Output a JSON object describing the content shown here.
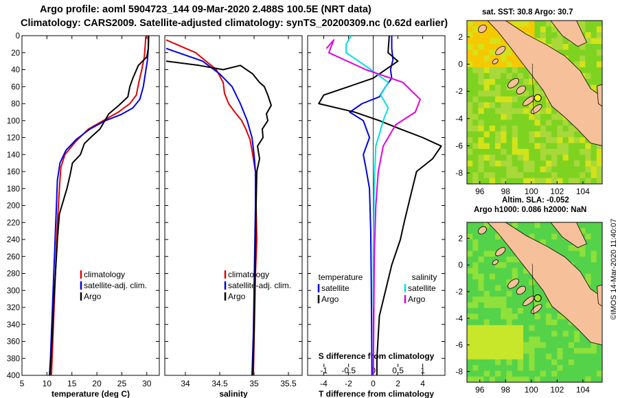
{
  "header": {
    "line1": "Argo profile: aoml 5904723_144 09-Mar-2020 2.488S 100.5E (NRT data)",
    "line2": "Climatology: CARS2009. Satellite-adjusted climatology: synTS_20200309.nc (0.62d earlier)"
  },
  "watermark": "©IMOS 14-Mar-2020 11:40:07",
  "colors": {
    "climatology": "#e00000",
    "satellite": "#0000e0",
    "argo": "#000000",
    "sat_salinity": "#00e0e0",
    "argo_salinity": "#e000e0",
    "land": "#f5c09a",
    "coast": "#000000"
  },
  "chart_data": [
    {
      "type": "line",
      "panel": "temperature",
      "xlabel": "temperature (deg C)",
      "xlim": [
        5,
        32.5
      ],
      "ylim": [
        0,
        400
      ],
      "y_inverted": true,
      "xticks": [
        5,
        10,
        15,
        20,
        25,
        30
      ],
      "yticks": [
        0,
        20,
        40,
        60,
        80,
        100,
        120,
        140,
        160,
        180,
        200,
        220,
        240,
        260,
        280,
        300,
        320,
        340,
        360,
        380,
        400
      ],
      "legend": [
        "climatology",
        "satellite-adj. clim.",
        "Argo"
      ],
      "series": [
        {
          "name": "climatology",
          "color": "#e00000",
          "points": [
            [
              29.8,
              0
            ],
            [
              29.7,
              10
            ],
            [
              29.5,
              25
            ],
            [
              29,
              40
            ],
            [
              28.4,
              55
            ],
            [
              27.9,
              70
            ],
            [
              26.6,
              80
            ],
            [
              24.3,
              90
            ],
            [
              21.3,
              100
            ],
            [
              18.3,
              110
            ],
            [
              15.7,
              125
            ],
            [
              13.6,
              140
            ],
            [
              12.8,
              155
            ],
            [
              12.6,
              170
            ],
            [
              12.4,
              190
            ],
            [
              12.1,
              220
            ],
            [
              11.9,
              250
            ],
            [
              11.7,
              280
            ],
            [
              11.5,
              310
            ],
            [
              11.3,
              340
            ],
            [
              11.1,
              370
            ],
            [
              10.9,
              400
            ]
          ]
        },
        {
          "name": "satellite-adj. clim.",
          "color": "#0000e0",
          "points": [
            [
              30.4,
              0
            ],
            [
              30.3,
              15
            ],
            [
              30.1,
              30
            ],
            [
              29.7,
              45
            ],
            [
              29.3,
              60
            ],
            [
              28.6,
              75
            ],
            [
              27.2,
              85
            ],
            [
              24.8,
              93
            ],
            [
              21.7,
              100
            ],
            [
              18.6,
              110
            ],
            [
              15.9,
              122
            ],
            [
              13.8,
              135
            ],
            [
              12.6,
              150
            ],
            [
              12.1,
              170
            ],
            [
              11.9,
              200
            ],
            [
              11.7,
              230
            ],
            [
              11.5,
              260
            ],
            [
              11.3,
              290
            ],
            [
              11.1,
              320
            ],
            [
              10.9,
              350
            ],
            [
              10.7,
              380
            ],
            [
              10.5,
              400
            ]
          ]
        },
        {
          "name": "Argo",
          "color": "#000000",
          "points": [
            [
              30.3,
              0
            ],
            [
              30.3,
              15
            ],
            [
              30,
              25
            ],
            [
              28.3,
              35
            ],
            [
              27.2,
              50
            ],
            [
              26.6,
              60
            ],
            [
              26.2,
              72
            ],
            [
              24.4,
              82
            ],
            [
              22.4,
              92
            ],
            [
              21.6,
              100
            ],
            [
              20.6,
              110
            ],
            [
              19.1,
              118
            ],
            [
              17.5,
              127
            ],
            [
              16.7,
              140
            ],
            [
              15.1,
              150
            ],
            [
              14.6,
              165
            ],
            [
              14,
              180
            ],
            [
              13.5,
              190
            ],
            [
              12.5,
              210
            ],
            [
              12.1,
              240
            ],
            [
              11.9,
              260
            ],
            [
              11.6,
              290
            ],
            [
              11.3,
              320
            ],
            [
              11.1,
              350
            ],
            [
              10.8,
              380
            ],
            [
              10.6,
              400
            ]
          ]
        }
      ]
    },
    {
      "type": "line",
      "panel": "salinity",
      "xlabel": "salinity",
      "xlim": [
        33.7,
        35.7
      ],
      "ylim": [
        0,
        400
      ],
      "y_inverted": true,
      "xticks": [
        34,
        34.5,
        35,
        35.5
      ],
      "legend": [
        "climatology",
        "satellite-adj. clim.",
        "Argo"
      ],
      "series": [
        {
          "name": "climatology",
          "color": "#e00000",
          "points": [
            [
              33.72,
              5
            ],
            [
              34.15,
              20
            ],
            [
              34.45,
              40
            ],
            [
              34.55,
              55
            ],
            [
              34.57,
              68
            ],
            [
              34.63,
              80
            ],
            [
              34.72,
              90
            ],
            [
              34.82,
              100
            ],
            [
              34.88,
              110
            ],
            [
              34.94,
              122
            ],
            [
              34.97,
              135
            ],
            [
              35,
              150
            ],
            [
              35.03,
              165
            ],
            [
              35.03,
              200
            ],
            [
              35.04,
              240
            ],
            [
              35.02,
              280
            ],
            [
              35.01,
              320
            ],
            [
              35,
              360
            ],
            [
              34.99,
              400
            ]
          ]
        },
        {
          "name": "satellite-adj. clim.",
          "color": "#0000e0",
          "points": [
            [
              33.72,
              15
            ],
            [
              34.25,
              30
            ],
            [
              34.5,
              45
            ],
            [
              34.68,
              60
            ],
            [
              34.8,
              80
            ],
            [
              34.9,
              100
            ],
            [
              34.97,
              120
            ],
            [
              35,
              140
            ],
            [
              35.02,
              160
            ],
            [
              35.02,
              200
            ],
            [
              35.01,
              250
            ],
            [
              35,
              300
            ],
            [
              34.99,
              350
            ],
            [
              34.97,
              400
            ]
          ]
        },
        {
          "name": "Argo",
          "color": "#000000",
          "points": [
            [
              33.72,
              30
            ],
            [
              34.2,
              35
            ],
            [
              34.55,
              40
            ],
            [
              34.8,
              35
            ],
            [
              34.98,
              45
            ],
            [
              35.08,
              55
            ],
            [
              35.15,
              60
            ],
            [
              35.2,
              70
            ],
            [
              35.25,
              82
            ],
            [
              35.18,
              92
            ],
            [
              35.2,
              100
            ],
            [
              35.12,
              110
            ],
            [
              35.13,
              120
            ],
            [
              35.05,
              130
            ],
            [
              35.08,
              145
            ],
            [
              35.04,
              160
            ],
            [
              35.03,
              200
            ],
            [
              35.02,
              250
            ],
            [
              35.01,
              300
            ],
            [
              35,
              350
            ],
            [
              34.98,
              400
            ]
          ]
        }
      ]
    },
    {
      "type": "line",
      "panel": "difference",
      "xlabel": "T difference from climatology",
      "x2label": "S difference from climatology",
      "xlim": [
        -5.3,
        5.8
      ],
      "ylim": [
        0,
        400
      ],
      "y_inverted": true,
      "xticks": [
        -4,
        -2,
        0,
        2,
        4
      ],
      "x2lim": [
        -1.33,
        1.45
      ],
      "x2ticks": [
        -1,
        -0.5,
        0,
        0.5,
        1
      ],
      "legend_groups": [
        [
          "temperature",
          "satellite",
          "Argo"
        ],
        [
          "salinity",
          "satellite",
          "Argo"
        ]
      ],
      "series": [
        {
          "name": "temperature satellite",
          "color": "#0000e0",
          "axis": "T",
          "points": [
            [
              1.5,
              0
            ],
            [
              1.5,
              15
            ],
            [
              1.6,
              28
            ],
            [
              1.4,
              40
            ],
            [
              1.5,
              50
            ],
            [
              1,
              60
            ],
            [
              0.5,
              72
            ],
            [
              -0.9,
              80
            ],
            [
              -1.9,
              90
            ],
            [
              -0.8,
              100
            ],
            [
              -0.3,
              120
            ],
            [
              -0.8,
              140
            ],
            [
              -0.6,
              155
            ],
            [
              -0.3,
              180
            ],
            [
              -0.2,
              230
            ],
            [
              -0.15,
              300
            ],
            [
              -0.1,
              400
            ]
          ]
        },
        {
          "name": "temperature Argo",
          "color": "#000000",
          "axis": "T",
          "points": [
            [
              1.3,
              0
            ],
            [
              1.2,
              20
            ],
            [
              2,
              30
            ],
            [
              0,
              50
            ],
            [
              -2,
              60
            ],
            [
              -4,
              70
            ],
            [
              -4.4,
              80
            ],
            [
              -1.5,
              90
            ],
            [
              0.5,
              100
            ],
            [
              2.2,
              110
            ],
            [
              4,
              120
            ],
            [
              5.5,
              130
            ],
            [
              4.8,
              145
            ],
            [
              3.5,
              160
            ],
            [
              3,
              190
            ],
            [
              2.5,
              220
            ],
            [
              2.2,
              240
            ],
            [
              1.5,
              270
            ],
            [
              1,
              300
            ],
            [
              0.5,
              330
            ],
            [
              0.3,
              380
            ],
            [
              0.3,
              400
            ]
          ]
        },
        {
          "name": "salinity satellite",
          "color": "#00e0e0",
          "axis": "S",
          "points": [
            [
              -0.45,
              0
            ],
            [
              -0.55,
              10
            ],
            [
              -0.55,
              20
            ],
            [
              -0.3,
              30
            ],
            [
              -0.05,
              40
            ],
            [
              0.3,
              55
            ],
            [
              0.15,
              70
            ],
            [
              0.3,
              85
            ],
            [
              0.2,
              100
            ],
            [
              0.05,
              130
            ],
            [
              0.02,
              170
            ],
            [
              0,
              250
            ],
            [
              0,
              320
            ]
          ]
        },
        {
          "name": "salinity Argo",
          "color": "#e000e0",
          "axis": "S",
          "points": [
            [
              -0.95,
              15
            ],
            [
              -0.8,
              5
            ],
            [
              -0.9,
              20
            ],
            [
              -0.15,
              40
            ],
            [
              0.6,
              55
            ],
            [
              0.95,
              75
            ],
            [
              0.85,
              90
            ],
            [
              0.45,
              105
            ],
            [
              0.2,
              130
            ],
            [
              0.1,
              160
            ],
            [
              0.05,
              200
            ],
            [
              0.02,
              260
            ],
            [
              0.01,
              330
            ],
            [
              0,
              400
            ]
          ]
        }
      ]
    },
    {
      "type": "heatmap",
      "panel": "sst_map",
      "title": "sat. SST: 30.8 Argo: 30.7",
      "xlim": [
        95,
        105.5
      ],
      "ylim": [
        -8.8,
        3.2
      ],
      "xticks": [
        96,
        98,
        100,
        102,
        104
      ],
      "yticks": [
        2,
        0,
        -2,
        -4,
        -6,
        -8
      ],
      "float_position": [
        100.5,
        -2.488
      ]
    },
    {
      "type": "heatmap",
      "panel": "sla_map",
      "title": "Altim. SLA: -0.052",
      "subtitle": "Argo h1000: 0.086 h2000: NaN",
      "xlim": [
        95,
        105.5
      ],
      "ylim": [
        -8.8,
        3.2
      ],
      "xticks": [
        96,
        98,
        100,
        102,
        104
      ],
      "yticks": [
        2,
        0,
        -2,
        -4,
        -6,
        -8
      ],
      "float_position": [
        100.5,
        -2.488
      ]
    }
  ]
}
